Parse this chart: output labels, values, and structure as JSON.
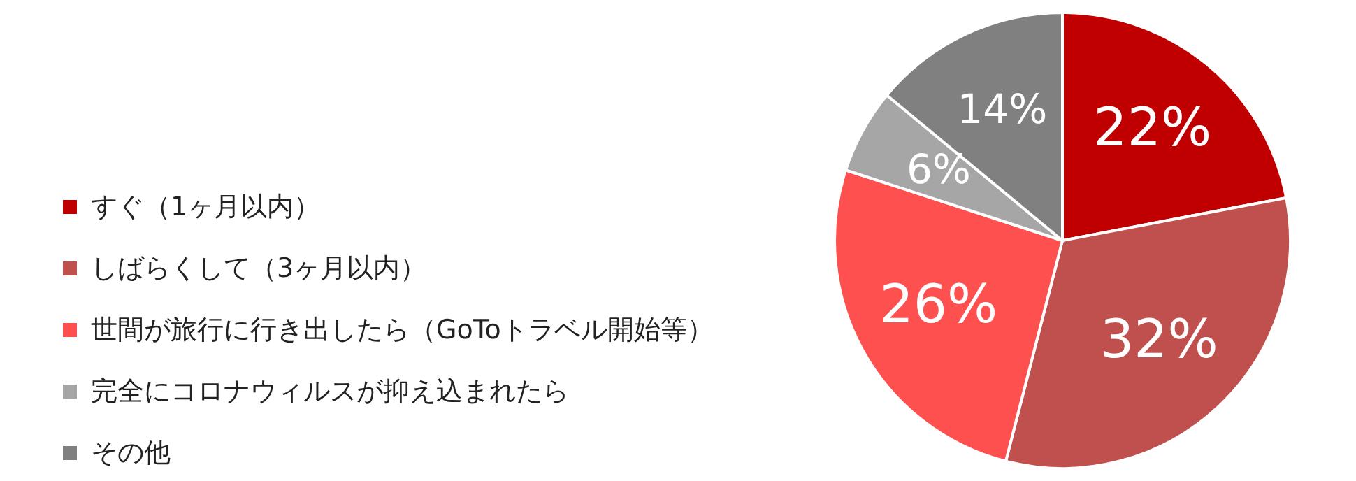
{
  "chart_data": {
    "type": "pie",
    "categories": [
      "すぐ（1ヶ月以内）",
      "しばらくして（3ヶ月以内）",
      "世間が旅行に行き出したら（GoToトラベル開始等）",
      "完全にコロナウィルスが抑え込まれたら",
      "その他"
    ],
    "values": [
      22,
      32,
      26,
      6,
      14
    ],
    "colors": [
      "#c00000",
      "#c0504d",
      "#ff5050",
      "#a6a6a6",
      "#808080"
    ],
    "value_labels": [
      "22%",
      "32%",
      "26%",
      "6%",
      "14%"
    ],
    "legend": "left"
  }
}
